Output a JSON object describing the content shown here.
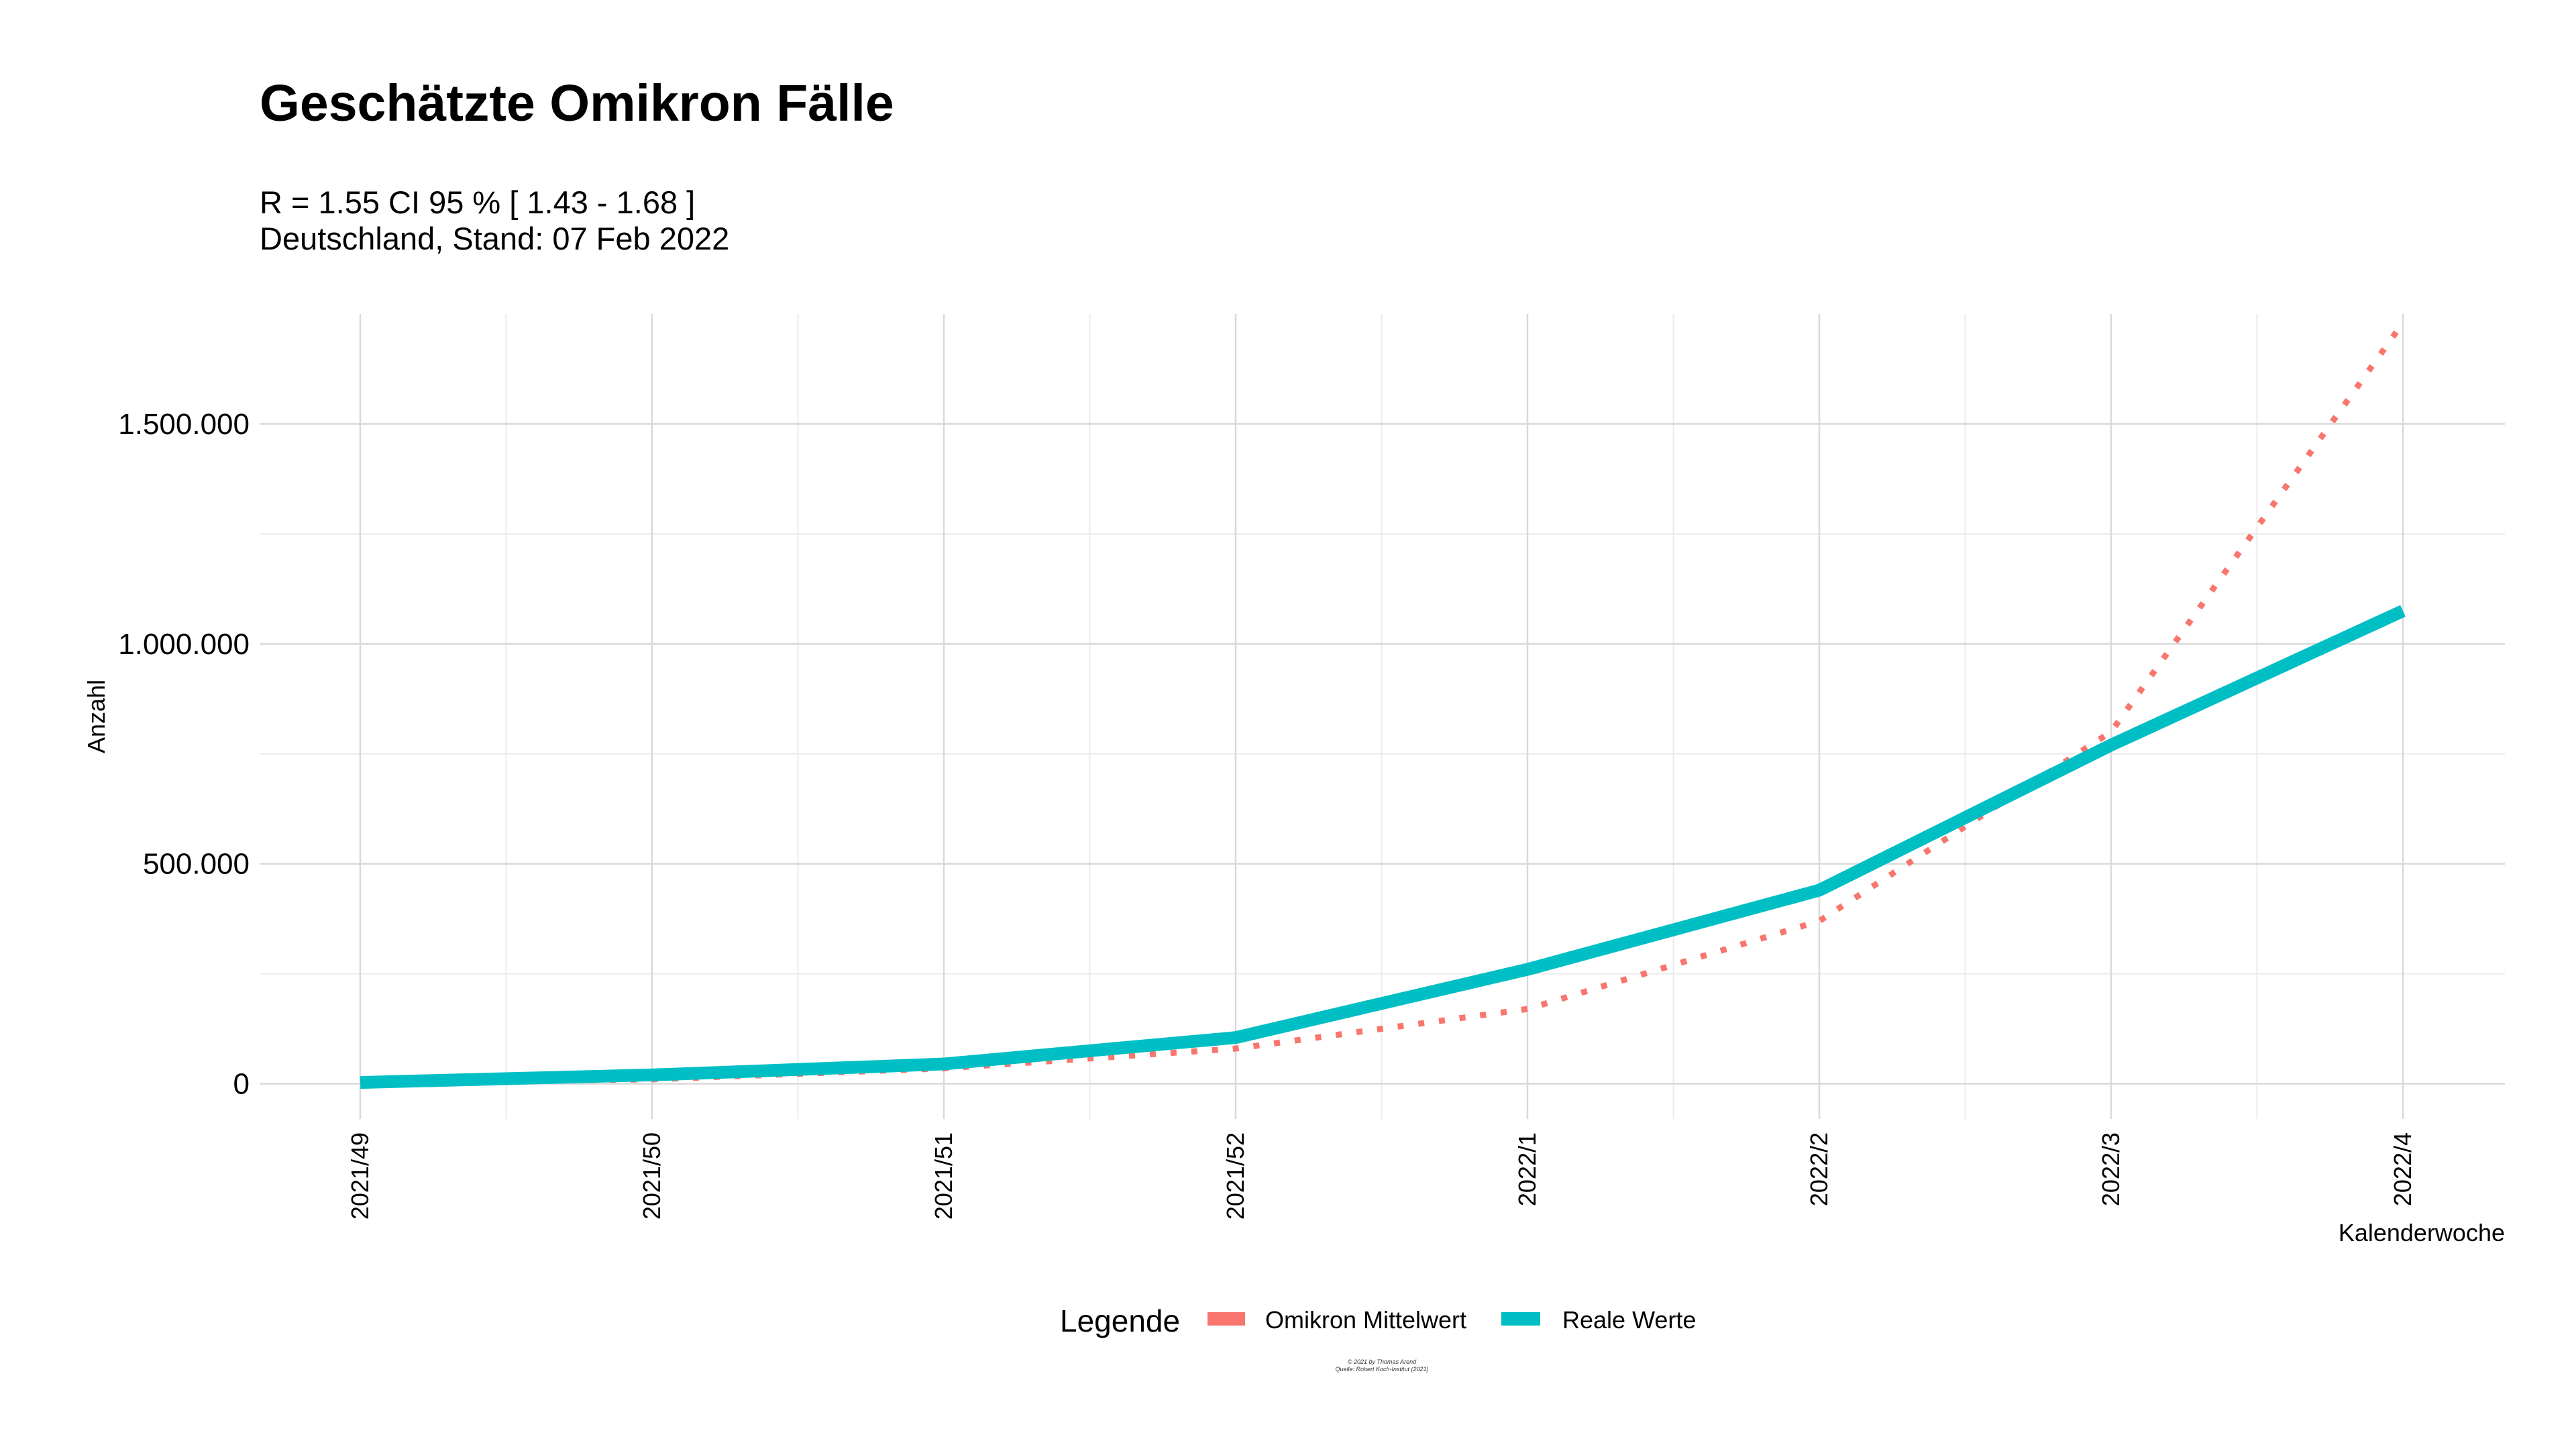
{
  "chart_data": {
    "type": "line",
    "title": "Geschätzte Omikron Fälle",
    "subtitle_lines": [
      "R = 1.55 CI 95 % [ 1.43 - 1.68 ]",
      "Deutschland, Stand: 07 Feb 2022"
    ],
    "xlabel": "Kalenderwoche",
    "ylabel": "Anzahl",
    "categories": [
      "2021/49",
      "2021/50",
      "2021/51",
      "2021/52",
      "2022/1",
      "2022/2",
      "2022/3",
      "2022/4"
    ],
    "ylim": [
      -80000,
      1750000
    ],
    "yticks": [
      0,
      500000,
      1000000,
      1500000
    ],
    "ytick_labels": [
      "0",
      "500.000",
      "1.000.000",
      "1.500.000"
    ],
    "grid": true,
    "series": [
      {
        "name": "Omikron Mittelwert",
        "color": "#F8766D",
        "style": "dotted",
        "values": [
          3000,
          10000,
          35000,
          80000,
          170000,
          370000,
          800000,
          1730000
        ]
      },
      {
        "name": "Reale Werte",
        "color": "#00BFC4",
        "style": "solid",
        "values": [
          3000,
          20000,
          45000,
          105000,
          260000,
          440000,
          770000,
          1075000
        ]
      }
    ],
    "legend": {
      "title": "Legende",
      "position": "bottom"
    },
    "caption_lines": [
      "© 2021 by Thomas Arend",
      "Quelle: Robert Koch-Institut (2021)"
    ]
  }
}
